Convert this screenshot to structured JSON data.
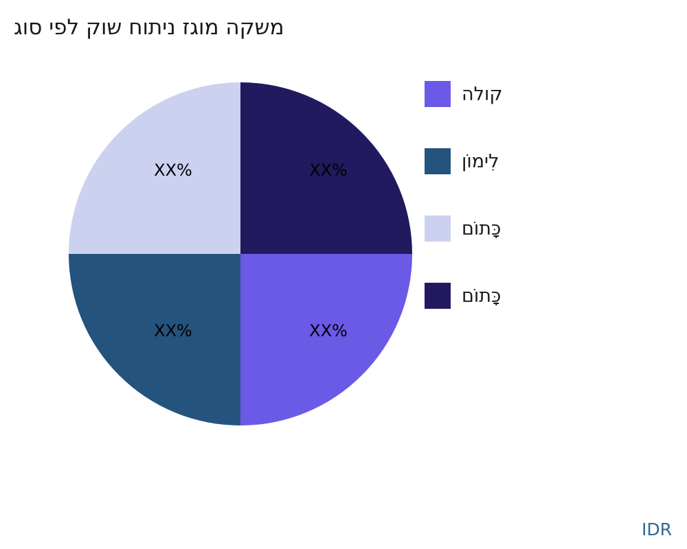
{
  "title": "משקה מוגז ניתוח שוק לפי סוג",
  "chart_data": {
    "type": "pie",
    "title": "משקה מוגז ניתוח שוק לפי סוג",
    "legend_position": "right",
    "start_angle": "right edge (90deg from top), clockwise",
    "slices": [
      {
        "label": "קולה",
        "display_label": "XX%",
        "value": 25,
        "color": "#6A5AE6",
        "quadrant": "bottom-right"
      },
      {
        "label": "לִימוֹן",
        "display_label": "XX%",
        "value": 25,
        "color": "#24537E",
        "quadrant": "bottom-left"
      },
      {
        "label": "כָּתוֹם",
        "display_label": "XX%",
        "value": 25,
        "color": "#CDD1F0",
        "quadrant": "top-left"
      },
      {
        "label": "כָּתוֹם",
        "display_label": "XX%",
        "value": 25,
        "color": "#211A5E",
        "quadrant": "top-right"
      }
    ]
  },
  "footer": {
    "currency_label": "IDR"
  }
}
